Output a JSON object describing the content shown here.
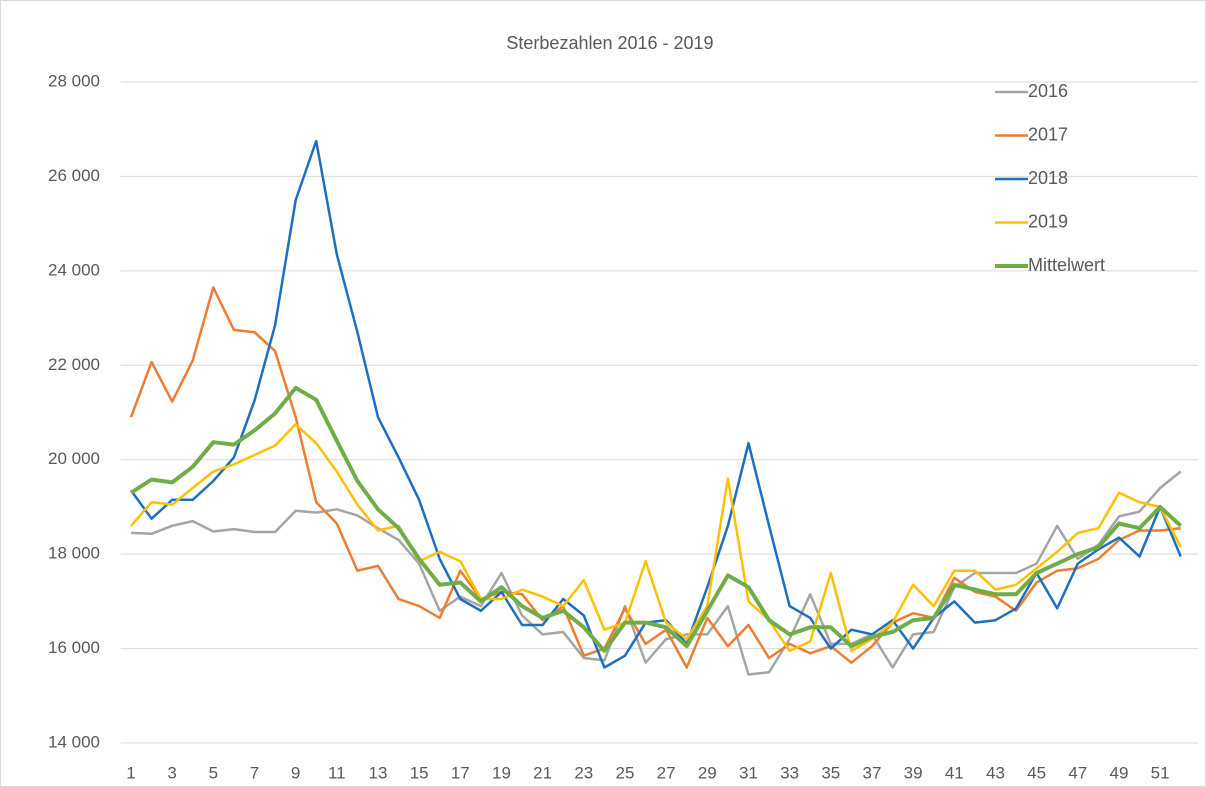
{
  "chart_data": {
    "type": "line",
    "title": "Sterbezahlen 2016 - 2019",
    "x": [
      1,
      2,
      3,
      4,
      5,
      6,
      7,
      8,
      9,
      10,
      11,
      12,
      13,
      14,
      15,
      16,
      17,
      18,
      19,
      20,
      21,
      22,
      23,
      24,
      25,
      26,
      27,
      28,
      29,
      30,
      31,
      32,
      33,
      34,
      35,
      36,
      37,
      38,
      39,
      40,
      41,
      42,
      43,
      44,
      45,
      46,
      47,
      48,
      49,
      50,
      51,
      52
    ],
    "xlim": [
      0.5,
      52.5
    ],
    "xticks": [
      1,
      3,
      5,
      7,
      9,
      11,
      13,
      15,
      17,
      19,
      21,
      23,
      25,
      27,
      29,
      31,
      33,
      35,
      37,
      39,
      41,
      43,
      45,
      47,
      49,
      51
    ],
    "ylim": [
      14000,
      28000
    ],
    "yticks": [
      {
        "value": 14000,
        "label": "14 000"
      },
      {
        "value": 16000,
        "label": "16 000"
      },
      {
        "value": 18000,
        "label": "18 000"
      },
      {
        "value": 20000,
        "label": "20 000"
      },
      {
        "value": 22000,
        "label": "22 000"
      },
      {
        "value": 24000,
        "label": "24 000"
      },
      {
        "value": 26000,
        "label": "26 000"
      },
      {
        "value": 28000,
        "label": "28 000"
      }
    ],
    "grid": true,
    "legend": "upper right",
    "series": [
      {
        "name": "2016",
        "color": "#a5a5a5",
        "values": [
          18450,
          18430,
          18600,
          18700,
          18480,
          18530,
          18470,
          18470,
          18920,
          18880,
          18950,
          18820,
          18550,
          18300,
          17800,
          16800,
          17100,
          16900,
          17600,
          16700,
          16300,
          16350,
          15800,
          15750,
          16900,
          15700,
          16200,
          16300,
          16300,
          16900,
          15450,
          15500,
          16200,
          17150,
          16100,
          16100,
          16300,
          15600,
          16300,
          16350,
          17300,
          17600,
          17600,
          17600,
          17800,
          18600,
          17900,
          18200,
          18800,
          18900,
          19400,
          19750
        ]
      },
      {
        "name": "2017",
        "color": "#ed7d31",
        "values": [
          20900,
          22070,
          21230,
          22100,
          23650,
          22750,
          22700,
          22300,
          20900,
          19100,
          18650,
          17650,
          17750,
          17050,
          16900,
          16650,
          17650,
          17050,
          17200,
          17150,
          16600,
          16900,
          15850,
          16000,
          16850,
          16100,
          16400,
          15600,
          16650,
          16050,
          16500,
          15800,
          16100,
          15900,
          16050,
          15700,
          16050,
          16550,
          16750,
          16650,
          17500,
          17200,
          17100,
          16800,
          17400,
          17650,
          17700,
          17900,
          18300,
          18500,
          18500,
          18550
        ]
      },
      {
        "name": "2018",
        "color": "#1f6fbf",
        "values": [
          19350,
          18750,
          19150,
          19150,
          19550,
          20050,
          21250,
          22850,
          25500,
          26750,
          24350,
          22700,
          20900,
          20050,
          19150,
          17900,
          17050,
          16800,
          17200,
          16500,
          16500,
          17050,
          16700,
          15600,
          15850,
          16550,
          16600,
          16100,
          17300,
          18600,
          20350,
          18600,
          16900,
          16650,
          16000,
          16400,
          16300,
          16600,
          16000,
          16650,
          17000,
          16550,
          16600,
          16850,
          17600,
          16850,
          17800,
          18100,
          18350,
          17950,
          19000,
          17950
        ]
      },
      {
        "name": "2019",
        "color": "#ffc000",
        "values": [
          18600,
          19100,
          19050,
          19400,
          19750,
          19900,
          20100,
          20300,
          20750,
          20350,
          19750,
          19050,
          18500,
          18600,
          17850,
          18050,
          17850,
          17050,
          17050,
          17250,
          17100,
          16900,
          17450,
          16400,
          16550,
          17850,
          16550,
          16200,
          16900,
          19600,
          17000,
          16600,
          15950,
          16150,
          17600,
          15950,
          16200,
          16550,
          17350,
          16900,
          17650,
          17650,
          17250,
          17350,
          17700,
          18050,
          18450,
          18550,
          19300,
          19100,
          19000,
          18150
        ]
      },
      {
        "name": "Mittelwert",
        "color": "#70ad47",
        "values": [
          19300,
          19580,
          19520,
          19850,
          20370,
          20320,
          20620,
          20980,
          21520,
          21270,
          20400,
          19550,
          18950,
          18550,
          17900,
          17350,
          17400,
          17000,
          17300,
          16900,
          16650,
          16800,
          16450,
          15950,
          16550,
          16550,
          16450,
          16050,
          16800,
          17550,
          17300,
          16600,
          16300,
          16450,
          16450,
          16050,
          16250,
          16350,
          16600,
          16650,
          17350,
          17250,
          17150,
          17150,
          17600,
          17800,
          18000,
          18150,
          18650,
          18550,
          19000,
          18600
        ]
      }
    ]
  }
}
